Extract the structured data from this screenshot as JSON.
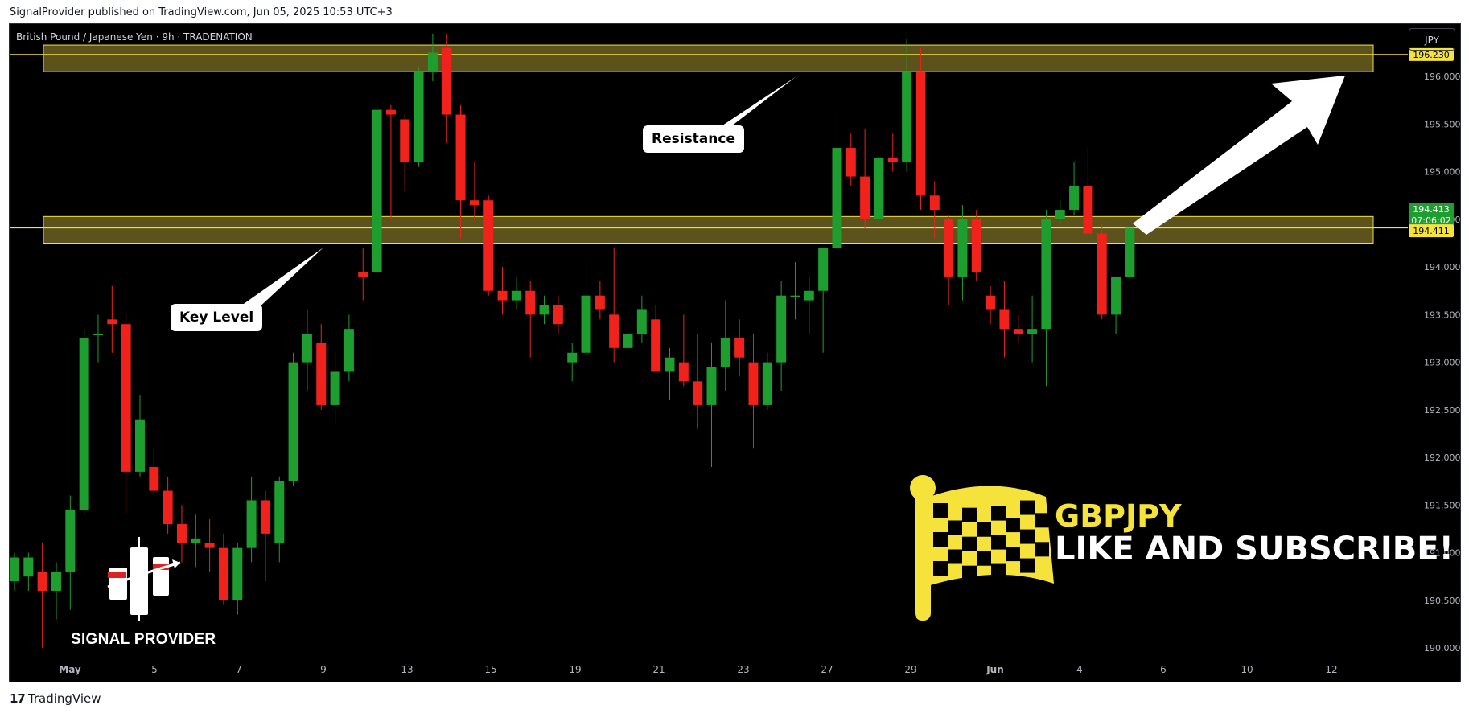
{
  "header": {
    "published_line": "SignalProvider published on TradingView.com, Jun 05, 2025 10:53 UTC+3"
  },
  "chart_header": {
    "symbol_line": "British Pound / Japanese Yen · 9h · TRADENATION",
    "currency_button": "JPY"
  },
  "annotations": {
    "resistance_label": "Resistance",
    "key_level_label": "Key Level",
    "brand_name": "SIGNAL PROVIDER",
    "promo_symbol": "GBPJPY",
    "promo_cta": "LIKE AND SUBSCRIBE!"
  },
  "price_tags": {
    "resistance_price": "196.230",
    "last_price": "194.413",
    "countdown": "07:06:02",
    "key_level_price": "194.411"
  },
  "footer": {
    "logo_text": "TradingView",
    "logo_mark": "17"
  },
  "colors": {
    "up": "#1e9e2e",
    "down": "#f0221b",
    "zone_fill": "#6b6220",
    "zone_line": "#f5e23a",
    "tag_yellow": "#f5e23a",
    "tag_green": "#1e9e2e",
    "axis_text": "#b2b5be"
  },
  "chart_data": {
    "type": "candlestick",
    "title": "British Pound / Japanese Yen · 9h · TRADENATION",
    "ylim": [
      189.95,
      196.55
    ],
    "y_ticks": [
      "190.000",
      "190.500",
      "191.000",
      "191.500",
      "192.000",
      "192.500",
      "193.000",
      "193.500",
      "194.000",
      "194.500",
      "195.000",
      "195.500",
      "196.000"
    ],
    "x_ticks": [
      "May",
      "5",
      "7",
      "9",
      "13",
      "15",
      "19",
      "21",
      "23",
      "27",
      "29",
      "Jun",
      "4",
      "6",
      "10",
      "12"
    ],
    "resistance_zone": [
      196.05,
      196.33
    ],
    "key_level_zone": [
      194.25,
      194.53
    ],
    "resistance_line": 196.23,
    "key_level_line": 194.411,
    "candles": [
      {
        "o": 190.7,
        "h": 191.0,
        "l": 190.6,
        "c": 190.95
      },
      {
        "o": 190.75,
        "h": 191.0,
        "l": 190.6,
        "c": 190.95
      },
      {
        "o": 190.8,
        "h": 191.1,
        "l": 190.0,
        "c": 190.6
      },
      {
        "o": 190.6,
        "h": 190.9,
        "l": 190.3,
        "c": 190.8
      },
      {
        "o": 190.8,
        "h": 191.6,
        "l": 190.4,
        "c": 191.45
      },
      {
        "o": 191.45,
        "h": 193.35,
        "l": 191.4,
        "c": 193.25
      },
      {
        "o": 193.3,
        "h": 193.5,
        "l": 193.0,
        "c": 193.3
      },
      {
        "o": 193.45,
        "h": 193.8,
        "l": 193.1,
        "c": 193.4
      },
      {
        "o": 193.4,
        "h": 193.5,
        "l": 191.4,
        "c": 191.85
      },
      {
        "o": 191.85,
        "h": 192.65,
        "l": 191.8,
        "c": 192.4
      },
      {
        "o": 191.9,
        "h": 192.1,
        "l": 191.6,
        "c": 191.65
      },
      {
        "o": 191.65,
        "h": 191.8,
        "l": 191.2,
        "c": 191.3
      },
      {
        "o": 191.3,
        "h": 191.5,
        "l": 190.9,
        "c": 191.1
      },
      {
        "o": 191.1,
        "h": 191.4,
        "l": 190.85,
        "c": 191.15
      },
      {
        "o": 191.1,
        "h": 191.35,
        "l": 190.8,
        "c": 191.05
      },
      {
        "o": 191.05,
        "h": 191.2,
        "l": 190.45,
        "c": 190.5
      },
      {
        "o": 190.5,
        "h": 191.1,
        "l": 190.35,
        "c": 191.05
      },
      {
        "o": 191.05,
        "h": 191.8,
        "l": 190.9,
        "c": 191.55
      },
      {
        "o": 191.55,
        "h": 191.65,
        "l": 190.7,
        "c": 191.2
      },
      {
        "o": 191.1,
        "h": 191.8,
        "l": 190.9,
        "c": 191.75
      },
      {
        "o": 191.75,
        "h": 193.1,
        "l": 191.7,
        "c": 193.0
      },
      {
        "o": 193.0,
        "h": 193.55,
        "l": 192.7,
        "c": 193.3
      },
      {
        "o": 193.2,
        "h": 193.4,
        "l": 192.5,
        "c": 192.55
      },
      {
        "o": 192.55,
        "h": 193.1,
        "l": 192.35,
        "c": 192.9
      },
      {
        "o": 192.9,
        "h": 193.5,
        "l": 192.8,
        "c": 193.35
      },
      {
        "o": 193.95,
        "h": 194.2,
        "l": 193.65,
        "c": 193.9
      },
      {
        "o": 193.95,
        "h": 195.7,
        "l": 193.9,
        "c": 195.65
      },
      {
        "o": 195.65,
        "h": 195.7,
        "l": 194.5,
        "c": 195.6
      },
      {
        "o": 195.55,
        "h": 195.6,
        "l": 194.8,
        "c": 195.1
      },
      {
        "o": 195.1,
        "h": 196.1,
        "l": 195.05,
        "c": 196.05
      },
      {
        "o": 196.05,
        "h": 196.45,
        "l": 195.95,
        "c": 196.25
      },
      {
        "o": 196.3,
        "h": 196.45,
        "l": 195.3,
        "c": 195.6
      },
      {
        "o": 195.6,
        "h": 195.7,
        "l": 194.3,
        "c": 194.7
      },
      {
        "o": 194.7,
        "h": 195.1,
        "l": 194.5,
        "c": 194.65
      },
      {
        "o": 194.7,
        "h": 194.75,
        "l": 193.7,
        "c": 193.75
      },
      {
        "o": 193.75,
        "h": 194.0,
        "l": 193.5,
        "c": 193.65
      },
      {
        "o": 193.65,
        "h": 193.9,
        "l": 193.55,
        "c": 193.75
      },
      {
        "o": 193.75,
        "h": 193.85,
        "l": 193.05,
        "c": 193.5
      },
      {
        "o": 193.5,
        "h": 193.7,
        "l": 193.4,
        "c": 193.6
      },
      {
        "o": 193.6,
        "h": 193.7,
        "l": 193.3,
        "c": 193.4
      },
      {
        "o": 193.0,
        "h": 193.2,
        "l": 192.8,
        "c": 193.1
      },
      {
        "o": 193.1,
        "h": 194.1,
        "l": 193.0,
        "c": 193.7
      },
      {
        "o": 193.7,
        "h": 193.85,
        "l": 193.45,
        "c": 193.55
      },
      {
        "o": 193.5,
        "h": 194.2,
        "l": 193.0,
        "c": 193.15
      },
      {
        "o": 193.15,
        "h": 193.55,
        "l": 193.0,
        "c": 193.3
      },
      {
        "o": 193.3,
        "h": 193.7,
        "l": 193.2,
        "c": 193.55
      },
      {
        "o": 193.45,
        "h": 193.6,
        "l": 192.9,
        "c": 192.9
      },
      {
        "o": 192.9,
        "h": 193.15,
        "l": 192.6,
        "c": 193.05
      },
      {
        "o": 193.0,
        "h": 193.5,
        "l": 192.75,
        "c": 192.8
      },
      {
        "o": 192.8,
        "h": 193.3,
        "l": 192.3,
        "c": 192.55
      },
      {
        "o": 192.55,
        "h": 193.2,
        "l": 191.9,
        "c": 192.95
      },
      {
        "o": 192.95,
        "h": 193.65,
        "l": 192.7,
        "c": 193.25
      },
      {
        "o": 193.25,
        "h": 193.45,
        "l": 192.85,
        "c": 193.05
      },
      {
        "o": 193.0,
        "h": 193.3,
        "l": 192.1,
        "c": 192.55
      },
      {
        "o": 192.55,
        "h": 193.1,
        "l": 192.5,
        "c": 193.0
      },
      {
        "o": 193.0,
        "h": 193.85,
        "l": 192.7,
        "c": 193.7
      },
      {
        "o": 193.7,
        "h": 194.05,
        "l": 193.45,
        "c": 193.7
      },
      {
        "o": 193.65,
        "h": 193.9,
        "l": 193.3,
        "c": 193.75
      },
      {
        "o": 193.75,
        "h": 194.2,
        "l": 193.1,
        "c": 194.2
      },
      {
        "o": 194.2,
        "h": 195.65,
        "l": 194.1,
        "c": 195.25
      },
      {
        "o": 195.25,
        "h": 195.4,
        "l": 194.85,
        "c": 194.95
      },
      {
        "o": 194.95,
        "h": 195.45,
        "l": 194.4,
        "c": 194.5
      },
      {
        "o": 194.5,
        "h": 195.3,
        "l": 194.35,
        "c": 195.15
      },
      {
        "o": 195.15,
        "h": 195.4,
        "l": 195.0,
        "c": 195.1
      },
      {
        "o": 195.1,
        "h": 196.4,
        "l": 195.0,
        "c": 196.05
      },
      {
        "o": 196.05,
        "h": 196.3,
        "l": 194.6,
        "c": 194.75
      },
      {
        "o": 194.75,
        "h": 194.9,
        "l": 194.3,
        "c": 194.6
      },
      {
        "o": 194.5,
        "h": 194.55,
        "l": 193.6,
        "c": 193.9
      },
      {
        "o": 193.9,
        "h": 194.65,
        "l": 193.65,
        "c": 194.5
      },
      {
        "o": 194.5,
        "h": 194.6,
        "l": 193.85,
        "c": 193.95
      },
      {
        "o": 193.7,
        "h": 193.8,
        "l": 193.4,
        "c": 193.55
      },
      {
        "o": 193.55,
        "h": 193.85,
        "l": 193.05,
        "c": 193.35
      },
      {
        "o": 193.35,
        "h": 193.5,
        "l": 193.2,
        "c": 193.3
      },
      {
        "o": 193.3,
        "h": 193.7,
        "l": 193.0,
        "c": 193.35
      },
      {
        "o": 193.35,
        "h": 194.6,
        "l": 192.75,
        "c": 194.5
      },
      {
        "o": 194.5,
        "h": 194.7,
        "l": 194.45,
        "c": 194.6
      },
      {
        "o": 194.6,
        "h": 195.1,
        "l": 194.55,
        "c": 194.85
      },
      {
        "o": 194.85,
        "h": 195.25,
        "l": 194.3,
        "c": 194.35
      },
      {
        "o": 194.35,
        "h": 194.45,
        "l": 193.45,
        "c": 193.5
      },
      {
        "o": 193.5,
        "h": 193.9,
        "l": 193.3,
        "c": 193.9
      },
      {
        "o": 193.9,
        "h": 194.45,
        "l": 193.85,
        "c": 194.41
      }
    ]
  }
}
